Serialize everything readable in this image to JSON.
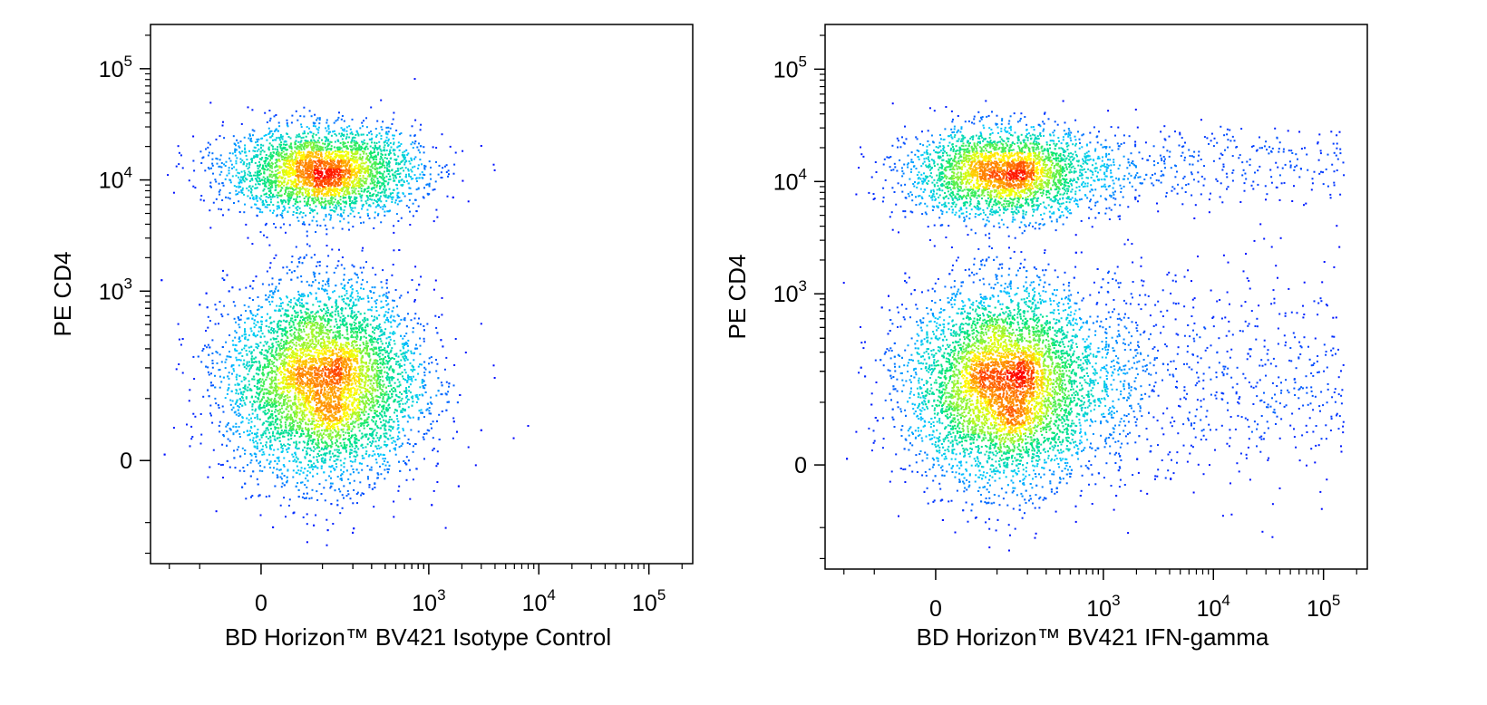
{
  "chart_data": [
    {
      "type": "scatter",
      "density_colored": true,
      "colormap": [
        "#0000ff",
        "#00c8ff",
        "#00e676",
        "#ffff00",
        "#ff0000"
      ],
      "xlabel": "BD Horizon™ BV421 Isotype Control",
      "ylabel": "PE CD4",
      "xscale": "biexponential",
      "yscale": "biexponential",
      "xlim": [
        -300,
        250000
      ],
      "ylim": [
        -250,
        250000
      ],
      "x_ticks": [
        {
          "value": 0,
          "base": "0",
          "exp": ""
        },
        {
          "value": 1000,
          "base": "10",
          "exp": "3"
        },
        {
          "value": 10000,
          "base": "10",
          "exp": "4"
        },
        {
          "value": 100000,
          "base": "10",
          "exp": "5"
        }
      ],
      "y_ticks": [
        {
          "value": 0,
          "base": "0",
          "exp": ""
        },
        {
          "value": 1000,
          "base": "10",
          "exp": "3"
        },
        {
          "value": 10000,
          "base": "10",
          "exp": "4"
        },
        {
          "value": 100000,
          "base": "10",
          "exp": "5"
        }
      ],
      "populations": [
        {
          "name": "",
          "x_center": 100,
          "y_center": 12000,
          "count": 3200
        },
        {
          "name": "",
          "x_center": 100,
          "y_center": 150,
          "count": 6500
        }
      ],
      "outliers": [
        {
          "x": 2000,
          "y": 10000
        },
        {
          "x": 1100,
          "y": 1050
        },
        {
          "x": 5800,
          "y": 30
        }
      ]
    },
    {
      "type": "scatter",
      "density_colored": true,
      "colormap": [
        "#0000ff",
        "#00c8ff",
        "#00e676",
        "#ffff00",
        "#ff0000"
      ],
      "xlabel": "BD Horizon™ BV421 IFN-gamma",
      "ylabel": "PE CD4",
      "xscale": "biexponential",
      "yscale": "biexponential",
      "xlim": [
        -300,
        250000
      ],
      "ylim": [
        -250,
        250000
      ],
      "x_ticks": [
        {
          "value": 0,
          "base": "0",
          "exp": ""
        },
        {
          "value": 1000,
          "base": "10",
          "exp": "3"
        },
        {
          "value": 10000,
          "base": "10",
          "exp": "4"
        },
        {
          "value": 100000,
          "base": "10",
          "exp": "5"
        }
      ],
      "y_ticks": [
        {
          "value": 0,
          "base": "0",
          "exp": ""
        },
        {
          "value": 1000,
          "base": "10",
          "exp": "3"
        },
        {
          "value": 10000,
          "base": "10",
          "exp": "4"
        },
        {
          "value": 100000,
          "base": "10",
          "exp": "5"
        }
      ],
      "populations": [
        {
          "name": "",
          "x_center": 120,
          "y_center": 12000,
          "count": 3000
        },
        {
          "name": "",
          "x_center": 120,
          "y_center": 150,
          "count": 6500
        }
      ],
      "ifn_positive_populations": [
        {
          "name": "",
          "x_range": [
            1000,
            150000
          ],
          "y_center": 14000,
          "count": 330
        },
        {
          "name": "",
          "x_range": [
            1000,
            150000
          ],
          "y_center": 200,
          "count": 700
        }
      ]
    }
  ]
}
